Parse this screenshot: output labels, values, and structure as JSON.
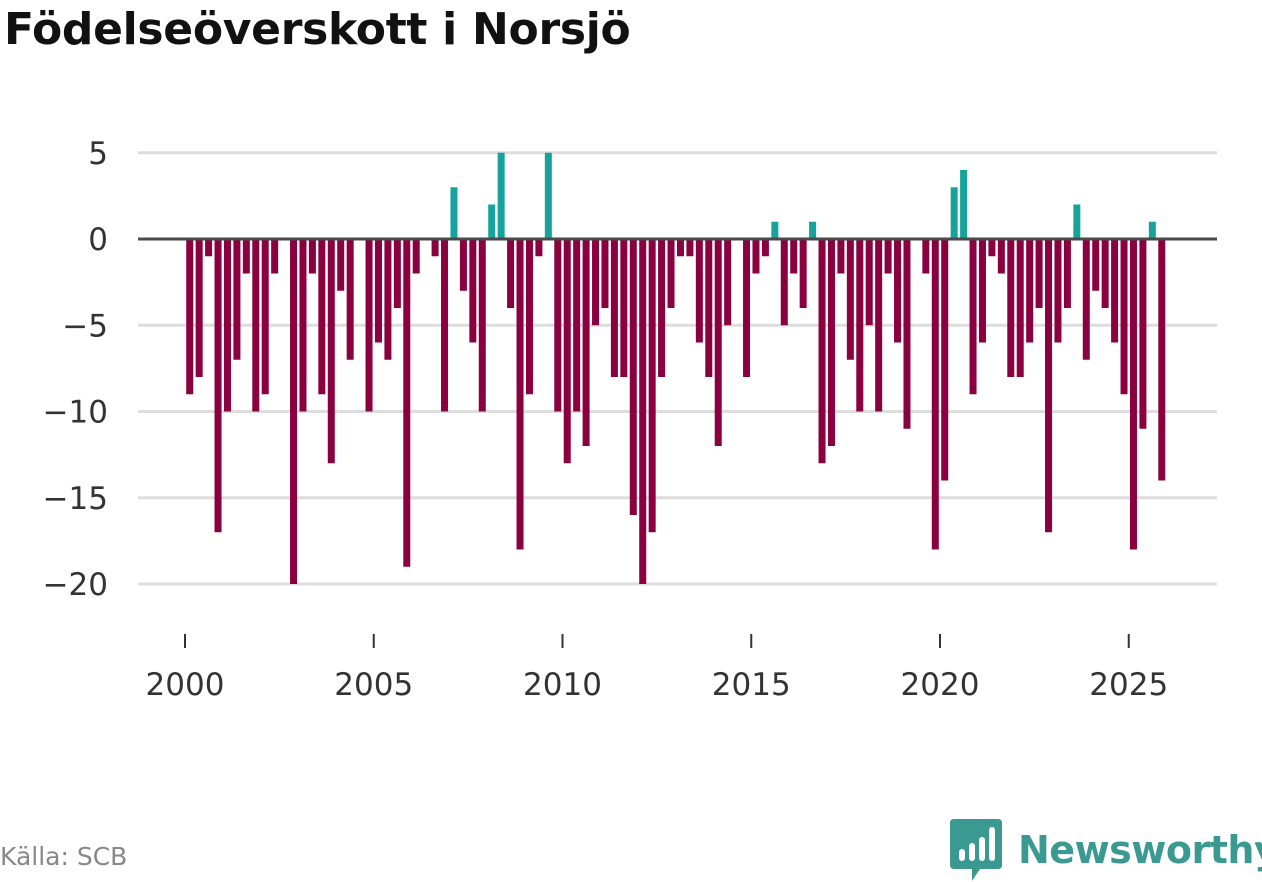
{
  "title": "Födelseöverskott i Norsjö",
  "source": "Källa: SCB",
  "brand": {
    "name": "Newsworthy",
    "icon": "newsworthy-logo-icon"
  },
  "colors": {
    "positive": "#16a39b",
    "negative": "#8b003f",
    "zero_line": "#4a4a4a",
    "grid": "#dddddd",
    "axis_text": "#333333"
  },
  "chart_data": {
    "type": "bar",
    "title": "Födelseöverskott i Norsjö",
    "xlabel": "",
    "ylabel": "",
    "x_unit": "year (quarterly bars)",
    "x_ticks": [
      2000,
      2005,
      2010,
      2015,
      2020,
      2025
    ],
    "x_tick_labels": [
      "2000",
      "2005",
      "2010",
      "2015",
      "2020",
      "2025"
    ],
    "y_ticks": [
      5,
      0,
      -5,
      -10,
      -15,
      -20
    ],
    "y_tick_labels": [
      "5",
      "0",
      "−5",
      "−10",
      "−15",
      "−20"
    ],
    "ylim": [
      -20,
      5
    ],
    "grid": true,
    "series": [
      {
        "name": "Födelseöverskott",
        "x_start": 2000.125,
        "x_step": 0.25,
        "values": [
          -9,
          -8,
          -1,
          -17,
          -10,
          -7,
          -2,
          -10,
          -9,
          -2,
          0,
          -20,
          -10,
          -2,
          -9,
          -13,
          -3,
          -7,
          0,
          -10,
          -6,
          -7,
          -4,
          -19,
          -2,
          0,
          -1,
          -10,
          3,
          -3,
          -6,
          -10,
          2,
          5,
          -4,
          -18,
          -9,
          -1,
          5,
          -10,
          -13,
          -10,
          -12,
          -5,
          -4,
          -8,
          -8,
          -16,
          -20,
          -17,
          -8,
          -4,
          -1,
          -1,
          -6,
          -8,
          -12,
          -5,
          0,
          -8,
          -2,
          -1,
          1,
          -5,
          -2,
          -4,
          1,
          -13,
          -12,
          -2,
          -7,
          -10,
          -5,
          -10,
          -2,
          -6,
          -11,
          0,
          -2,
          -18,
          -14,
          3,
          4,
          -9,
          -6,
          -1,
          -2,
          -8,
          -8,
          -6,
          -4,
          -17,
          -6,
          -4,
          2,
          -7,
          -3,
          -4,
          -6,
          -9,
          -18,
          -11,
          1,
          -14
        ]
      }
    ]
  }
}
